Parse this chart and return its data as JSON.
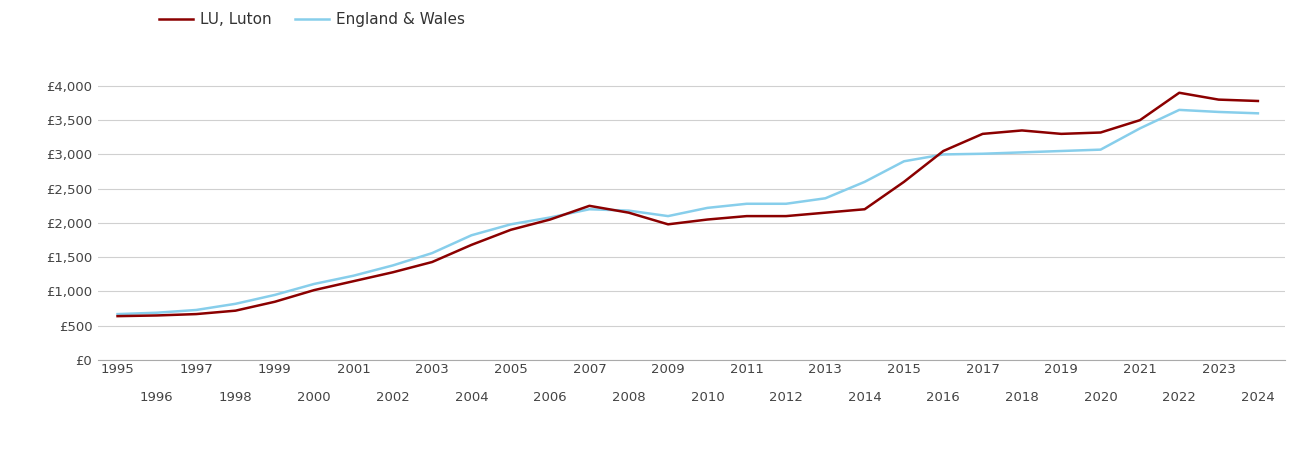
{
  "luton_years": [
    1995,
    1996,
    1997,
    1998,
    1999,
    2000,
    2001,
    2002,
    2003,
    2004,
    2005,
    2006,
    2007,
    2008,
    2009,
    2010,
    2011,
    2012,
    2013,
    2014,
    2015,
    2016,
    2017,
    2018,
    2019,
    2020,
    2021,
    2022,
    2023,
    2024
  ],
  "luton_values": [
    640,
    650,
    670,
    720,
    850,
    1020,
    1150,
    1280,
    1430,
    1680,
    1900,
    2050,
    2250,
    2150,
    1980,
    2050,
    2100,
    2100,
    2150,
    2200,
    2600,
    3050,
    3300,
    3350,
    3300,
    3320,
    3500,
    3900,
    3800,
    3780
  ],
  "ew_years": [
    1995,
    1996,
    1997,
    1998,
    1999,
    2000,
    2001,
    2002,
    2003,
    2004,
    2005,
    2006,
    2007,
    2008,
    2009,
    2010,
    2011,
    2012,
    2013,
    2014,
    2015,
    2016,
    2017,
    2018,
    2019,
    2020,
    2021,
    2022,
    2023,
    2024
  ],
  "ew_values": [
    670,
    690,
    730,
    820,
    950,
    1110,
    1230,
    1380,
    1560,
    1820,
    1980,
    2080,
    2200,
    2180,
    2100,
    2220,
    2280,
    2280,
    2360,
    2600,
    2900,
    3000,
    3010,
    3030,
    3050,
    3070,
    3380,
    3650,
    3620,
    3600
  ],
  "luton_color": "#8B0000",
  "ew_color": "#87CEEB",
  "luton_label": "LU, Luton",
  "ew_label": "England & Wales",
  "ylim_min": 0,
  "ylim_max": 4400,
  "yticks": [
    0,
    500,
    1000,
    1500,
    2000,
    2500,
    3000,
    3500,
    4000
  ],
  "ytick_labels": [
    "£0",
    "£500",
    "£1,000",
    "£1,500",
    "£2,000",
    "£2,500",
    "£3,000",
    "£3,500",
    "£4,000"
  ],
  "xlim_min": 1994.5,
  "xlim_max": 2024.7,
  "bg_color": "#ffffff",
  "grid_color": "#d0d0d0",
  "line_width": 1.8,
  "tick_fontsize": 9.5,
  "legend_fontsize": 11
}
